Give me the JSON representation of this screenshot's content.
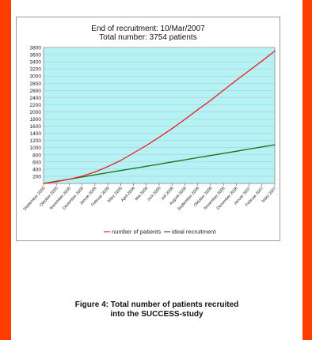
{
  "colors": {
    "frame": "#ff3c00",
    "plot_background": "#b4f2f6",
    "patients_line": "#ee1c1c",
    "ideal_line": "#197019"
  },
  "caption": {
    "line1": "Figure 4: Total number of patients recruited",
    "line2": "into the SUCCESS-study"
  },
  "chart_data": {
    "type": "line",
    "title": "End of recruitment: 10/Mar/2007",
    "subtitle": "Total number: 3754 patients",
    "xlabel": "",
    "ylabel": "",
    "ylim": [
      0,
      3800
    ],
    "y_ticks": [
      200,
      400,
      600,
      800,
      1000,
      1200,
      1400,
      1600,
      1800,
      2000,
      2200,
      2400,
      2600,
      2800,
      3000,
      3200,
      3400,
      3600,
      3800
    ],
    "categories": [
      "September 2005",
      "Oktober 2005",
      "November 2005",
      "Dezember 2005",
      "Januar 2006",
      "Februar 2006",
      "März 2006",
      "April 2006",
      "Mai 2006",
      "Juni 2006",
      "Juli 2006",
      "August 2006",
      "September 2006",
      "Oktober 2006",
      "November 2006",
      "Dezember 2006",
      "Januar 2007",
      "Februar 2007",
      "März 2007"
    ],
    "grid": true,
    "legend_position": "bottom",
    "series": [
      {
        "name": "number of patients",
        "values": [
          0,
          50,
          120,
          200,
          320,
          470,
          640,
          850,
          1060,
          1290,
          1530,
          1790,
          2060,
          2320,
          2600,
          2880,
          3150,
          3420,
          3700
        ]
      },
      {
        "name": "ideal recruitment",
        "values": [
          0,
          60,
          120,
          180,
          240,
          300,
          360,
          420,
          480,
          540,
          600,
          660,
          720,
          780,
          840,
          900,
          960,
          1020,
          1080
        ]
      }
    ]
  }
}
